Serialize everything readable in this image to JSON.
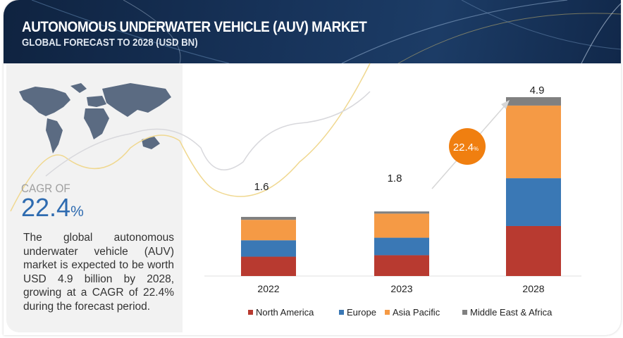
{
  "header": {
    "title": "AUTONOMOUS UNDERWATER VEHICLE (AUV) MARKET",
    "subtitle": "GLOBAL FORECAST TO 2028 (USD BN)"
  },
  "left_panel": {
    "cagr_label": "CAGR OF",
    "cagr_value": "22.4",
    "cagr_unit": "%",
    "description": "The global autonomous underwater vehicle (AUV) market is expected to be worth USD 4.9 billion by 2028, growing at a CAGR of 22.4% during the forecast period.",
    "map_icon": "world-map-icon"
  },
  "chart_data": {
    "type": "bar",
    "stacked": true,
    "title": "GLOBAL FORECAST TO 2028 (USD BN)",
    "categories": [
      "2022",
      "2023",
      "2028"
    ],
    "totals": [
      "1.6",
      "1.8",
      "4.9"
    ],
    "series": [
      {
        "name": "North America",
        "color": "#b83a30",
        "values": [
          0.53,
          0.57,
          1.37
        ]
      },
      {
        "name": "Europe",
        "color": "#3a78b5",
        "values": [
          0.45,
          0.48,
          1.31
        ]
      },
      {
        "name": "Asia Pacific",
        "color": "#f59a45",
        "values": [
          0.56,
          0.66,
          1.99
        ]
      },
      {
        "name": "Middle East & Africa",
        "color": "#808080",
        "values": [
          0.08,
          0.06,
          0.23
        ]
      }
    ],
    "ylim": [
      0,
      4.9
    ],
    "grid": false,
    "legend": "bottom",
    "annotation": {
      "text": "22.4",
      "unit": "%",
      "color": "#f07f10"
    }
  }
}
